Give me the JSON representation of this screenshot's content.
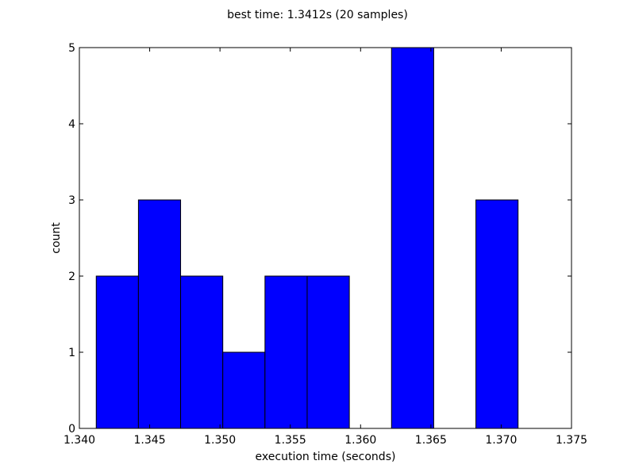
{
  "chart_data": {
    "type": "bar",
    "title": "best time: 1.3412s (20 samples)",
    "xlabel": "execution time (seconds)",
    "ylabel": "count",
    "xlim": [
      1.34,
      1.375
    ],
    "ylim": [
      0,
      5
    ],
    "xticks": [
      "1.340",
      "1.345",
      "1.350",
      "1.355",
      "1.360",
      "1.365",
      "1.370",
      "1.375"
    ],
    "yticks": [
      "0",
      "1",
      "2",
      "3",
      "4",
      "5"
    ],
    "bins": [
      {
        "start": 1.3412,
        "end": 1.3442,
        "count": 2
      },
      {
        "start": 1.3442,
        "end": 1.3472,
        "count": 3
      },
      {
        "start": 1.3472,
        "end": 1.3502,
        "count": 2
      },
      {
        "start": 1.3502,
        "end": 1.3532,
        "count": 1
      },
      {
        "start": 1.3532,
        "end": 1.3562,
        "count": 2
      },
      {
        "start": 1.3562,
        "end": 1.3592,
        "count": 2
      },
      {
        "start": 1.3592,
        "end": 1.3622,
        "count": 0
      },
      {
        "start": 1.3622,
        "end": 1.3652,
        "count": 5
      },
      {
        "start": 1.3652,
        "end": 1.3682,
        "count": 0
      },
      {
        "start": 1.3682,
        "end": 1.3712,
        "count": 3
      }
    ],
    "bar_color": "#0000ff",
    "edge_color": "#000000",
    "grid": false
  }
}
